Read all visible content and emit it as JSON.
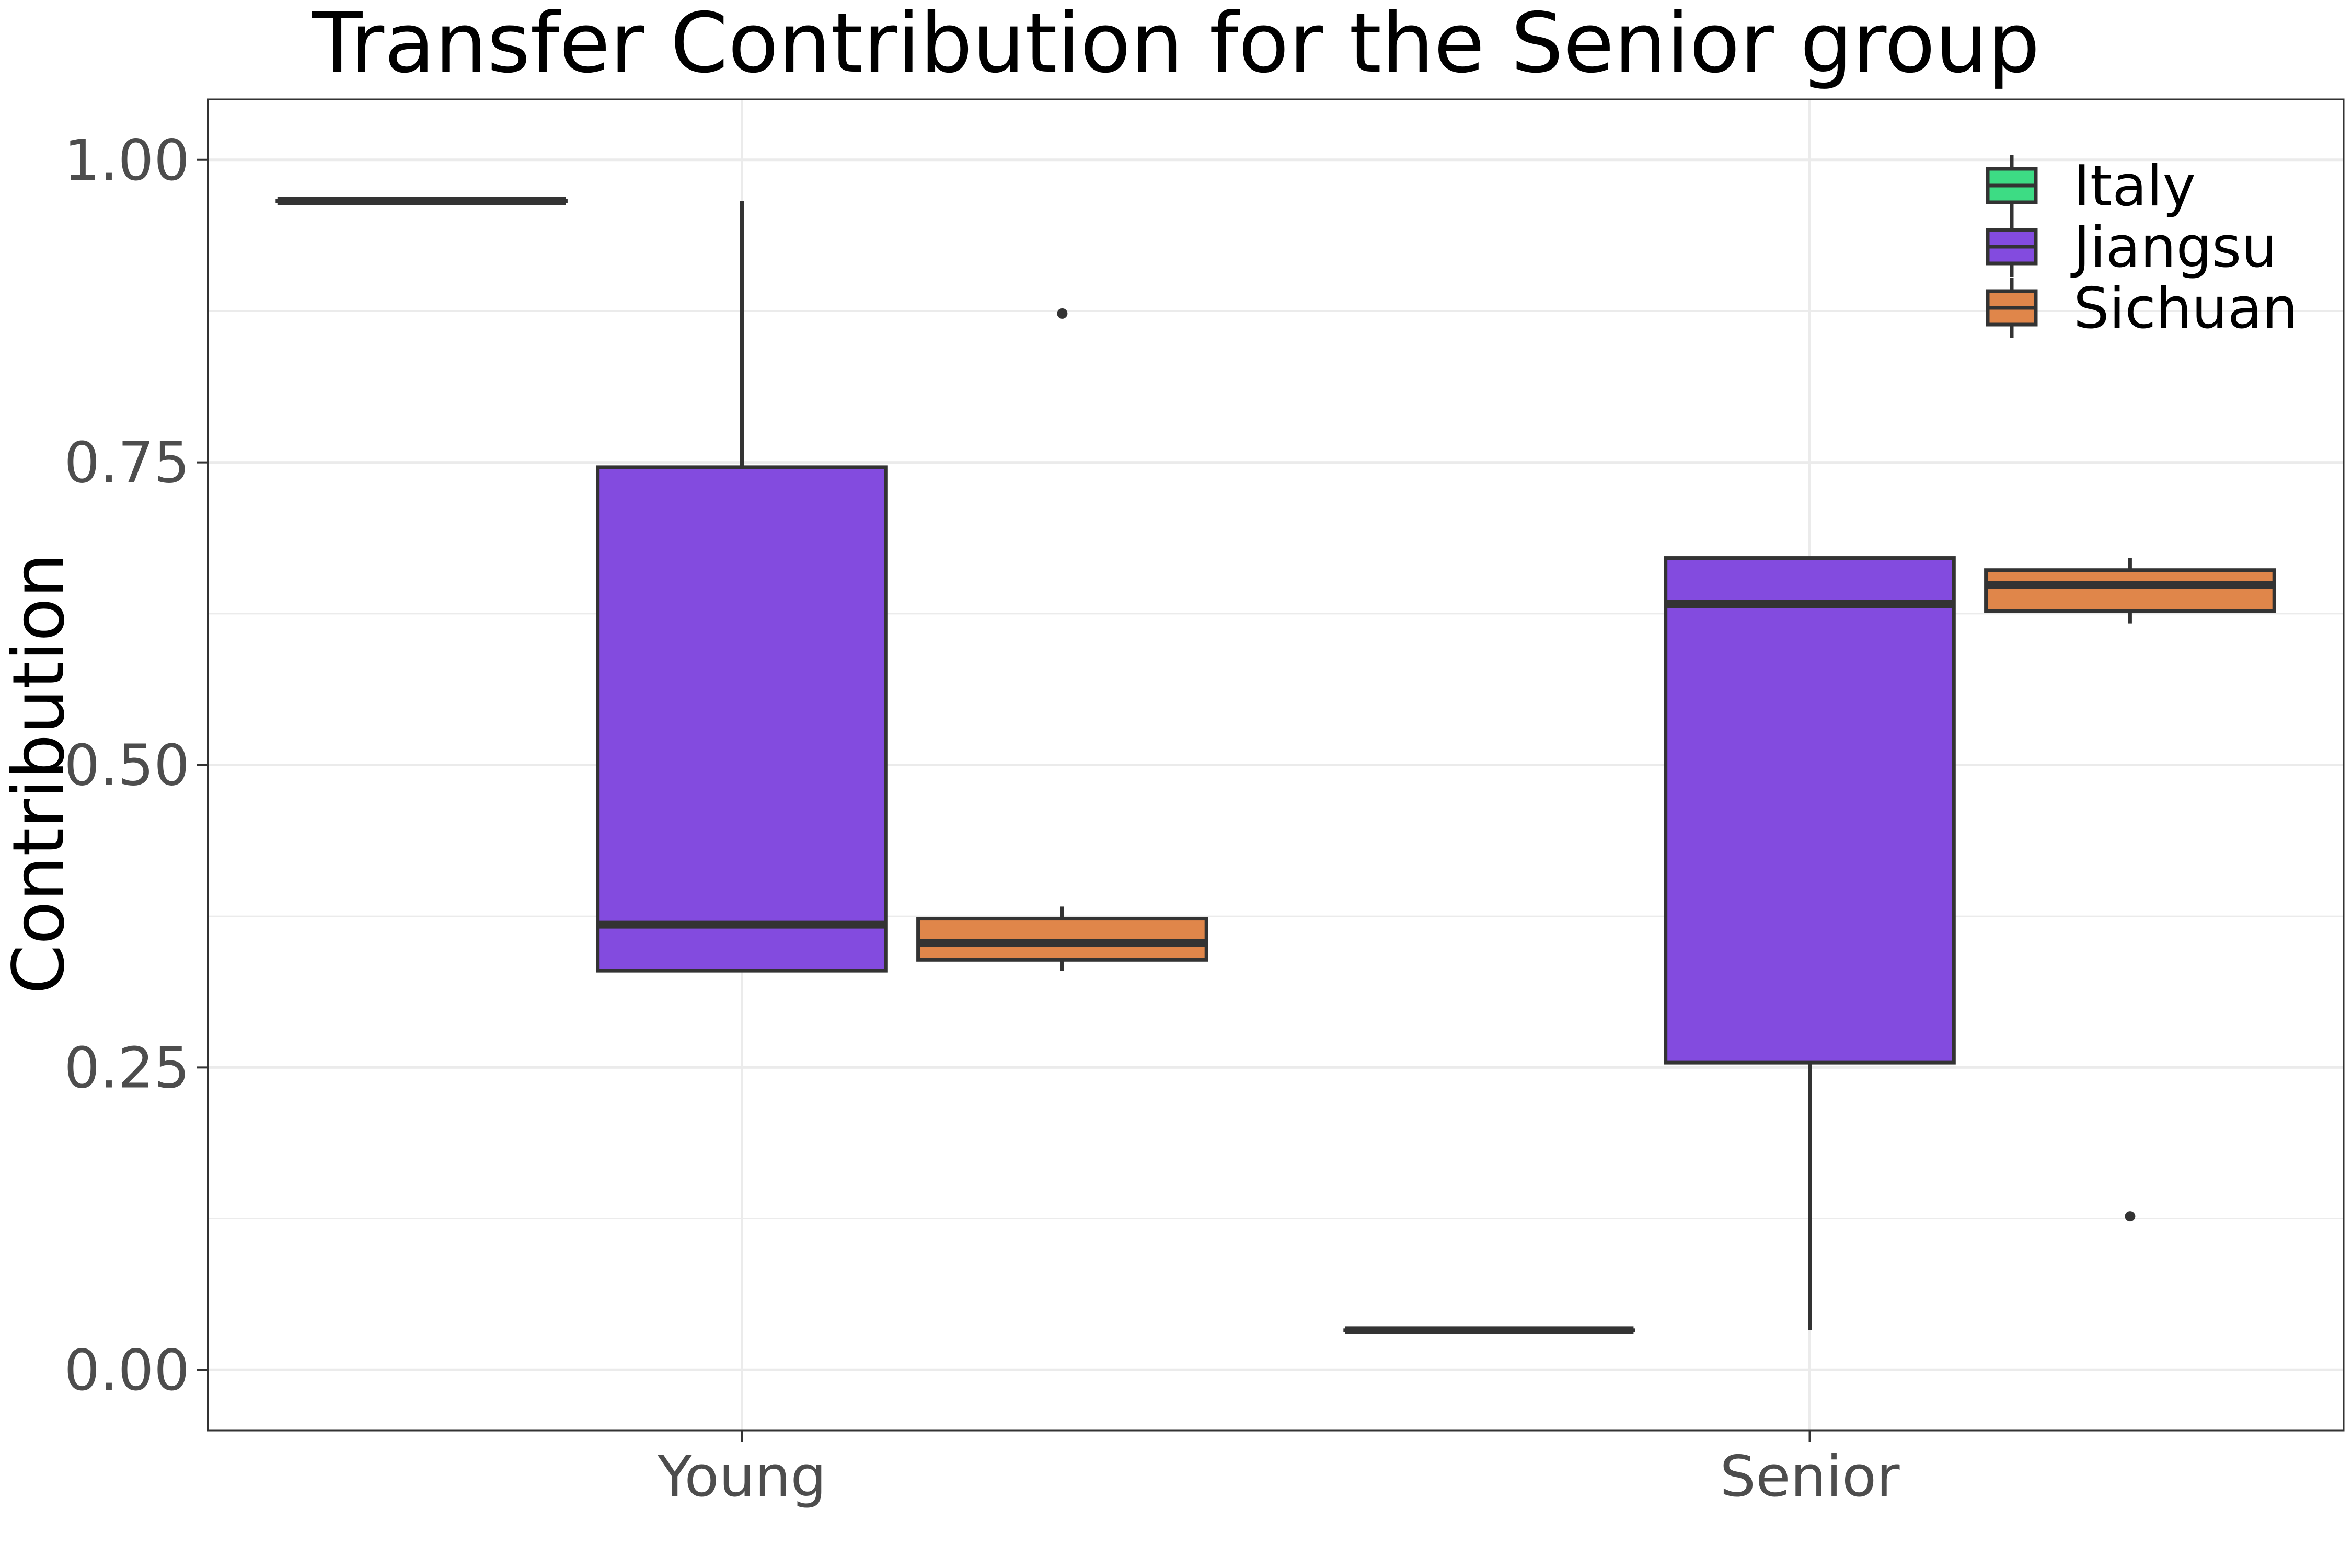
{
  "chart_data": {
    "type": "box",
    "title": "Transfer Contribution for the Senior group",
    "xlabel": "",
    "ylabel": "Contribution",
    "categories": [
      "Young",
      "Senior"
    ],
    "ylim": [
      -0.05,
      1.05
    ],
    "yticks": [
      {
        "value": 0.0,
        "label": "0.00"
      },
      {
        "value": 0.25,
        "label": "0.25"
      },
      {
        "value": 0.5,
        "label": "0.50"
      },
      {
        "value": 0.75,
        "label": "0.75"
      },
      {
        "value": 1.0,
        "label": "1.00"
      }
    ],
    "grid": true,
    "legend_position": "top-right",
    "series": [
      {
        "name": "Italy",
        "color": "#3ddc84",
        "boxes": [
          {
            "category": "Young",
            "min": 0.966,
            "q1": 0.966,
            "median": 0.966,
            "q3": 0.966,
            "max": 0.966,
            "outliers": []
          },
          {
            "category": "Senior",
            "min": 0.033,
            "q1": 0.033,
            "median": 0.033,
            "q3": 0.033,
            "max": 0.033,
            "outliers": []
          }
        ]
      },
      {
        "name": "Jiangsu",
        "color": "#834bdf",
        "boxes": [
          {
            "category": "Young",
            "min": 0.33,
            "q1": 0.33,
            "median": 0.368,
            "q3": 0.746,
            "max": 0.966,
            "outliers": []
          },
          {
            "category": "Senior",
            "min": 0.033,
            "q1": 0.254,
            "median": 0.633,
            "q3": 0.671,
            "max": 0.671,
            "outliers": []
          }
        ]
      },
      {
        "name": "Sichuan",
        "color": "#e0864a",
        "boxes": [
          {
            "category": "Young",
            "min": 0.33,
            "q1": 0.339,
            "median": 0.353,
            "q3": 0.373,
            "max": 0.383,
            "outliers": [
              0.873
            ]
          },
          {
            "category": "Senior",
            "min": 0.617,
            "q1": 0.627,
            "median": 0.649,
            "q3": 0.661,
            "max": 0.671,
            "outliers": [
              0.127
            ]
          }
        ]
      }
    ]
  }
}
